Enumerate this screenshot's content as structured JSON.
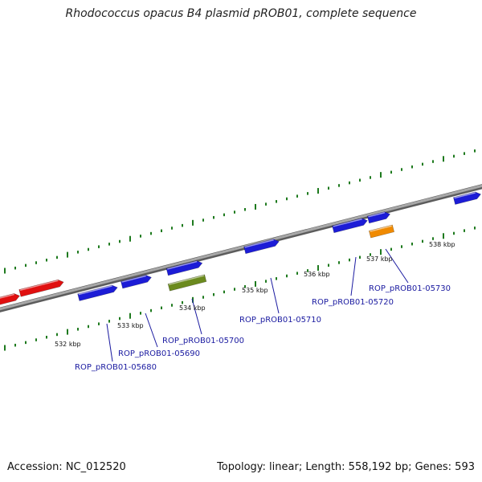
{
  "title": "Rhodococcus opacus B4 plasmid pROB01, complete sequence",
  "footer": {
    "accession": "Accession: NC_012520",
    "summary": "Topology: linear; Length: 558,192 bp; Genes: 593"
  },
  "colors": {
    "backbone": "#7d7d7d",
    "ticks": "#1e7a1e",
    "gene_blue": "#1c1cd6",
    "gene_red": "#e01010",
    "gene_olive": "#6b8a1e",
    "gene_orange": "#f08a00",
    "label_line": "#1a1aa0"
  },
  "tick_labels": [
    "532 kbp",
    "533 kbp",
    "534 kbp",
    "535 kbp",
    "536 kbp",
    "537 kbp",
    "538 kbp"
  ],
  "gene_labels": [
    "ROP_pROB01-05680",
    "ROP_pROB01-05690",
    "ROP_pROB01-05700",
    "ROP_pROB01-05710",
    "ROP_pROB01-05720",
    "ROP_pROB01-05730"
  ]
}
